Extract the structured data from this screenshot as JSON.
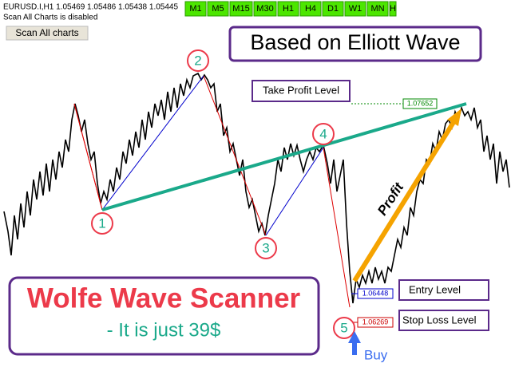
{
  "header": {
    "symbol_line": "EURUSD.I,H1  1.05469 1.05486 1.05438 1.05445",
    "scan_status": "Scan All Charts is disabled",
    "scan_button": "Scan All charts"
  },
  "timeframes": [
    "M1",
    "M5",
    "M15",
    "M30",
    "H1",
    "H4",
    "D1",
    "W1",
    "MN",
    "H"
  ],
  "banner": {
    "elliott": "Based on Elliott Wave",
    "product": "Wolfe Wave Scanner",
    "price": "- It is just 39$"
  },
  "levels": [
    {
      "label": "Take Profit Level",
      "price": "1.07652"
    },
    {
      "label": "Entry Level",
      "price": "1.06448"
    },
    {
      "label": "Stop Loss Level",
      "price": "1.06269"
    }
  ],
  "waves": [
    "1",
    "2",
    "3",
    "4",
    "5"
  ],
  "annotations": {
    "profit": "Profit",
    "buy": "Buy"
  }
}
